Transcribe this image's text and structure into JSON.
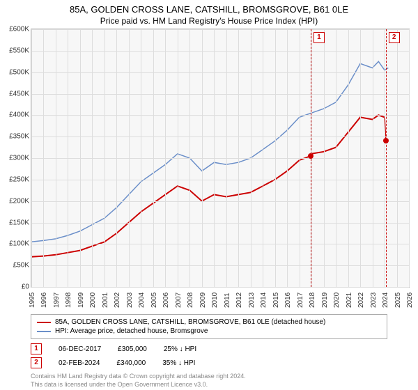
{
  "title": "85A, GOLDEN CROSS LANE, CATSHILL, BROMSGROVE, B61 0LE",
  "subtitle": "Price paid vs. HM Land Registry's House Price Index (HPI)",
  "chart": {
    "type": "line",
    "background_color": "#f7f7f7",
    "grid_color": "#dddddd",
    "border_color": "#bbbbbb",
    "y": {
      "min": 0,
      "max": 600000,
      "step": 50000,
      "labels": [
        "£0",
        "£50K",
        "£100K",
        "£150K",
        "£200K",
        "£250K",
        "£300K",
        "£350K",
        "£400K",
        "£450K",
        "£500K",
        "£550K",
        "£600K"
      ]
    },
    "x": {
      "min": 1995,
      "max": 2026,
      "step": 1,
      "labels": [
        "1995",
        "1996",
        "1997",
        "1998",
        "1999",
        "2000",
        "2001",
        "2002",
        "2003",
        "2004",
        "2005",
        "2006",
        "2007",
        "2008",
        "2009",
        "2010",
        "2011",
        "2012",
        "2013",
        "2014",
        "2015",
        "2016",
        "2017",
        "2018",
        "2019",
        "2020",
        "2021",
        "2022",
        "2023",
        "2024",
        "2025",
        "2026"
      ]
    },
    "series": [
      {
        "name": "property",
        "color": "#cc0000",
        "width": 2,
        "label": "85A, GOLDEN CROSS LANE, CATSHILL, BROMSGROVE, B61 0LE (detached house)",
        "points": [
          [
            1995,
            70000
          ],
          [
            1996,
            72000
          ],
          [
            1997,
            75000
          ],
          [
            1998,
            80000
          ],
          [
            1999,
            85000
          ],
          [
            2000,
            95000
          ],
          [
            2001,
            105000
          ],
          [
            2002,
            125000
          ],
          [
            2003,
            150000
          ],
          [
            2004,
            175000
          ],
          [
            2005,
            195000
          ],
          [
            2006,
            215000
          ],
          [
            2007,
            235000
          ],
          [
            2008,
            225000
          ],
          [
            2009,
            200000
          ],
          [
            2010,
            215000
          ],
          [
            2011,
            210000
          ],
          [
            2012,
            215000
          ],
          [
            2013,
            220000
          ],
          [
            2014,
            235000
          ],
          [
            2015,
            250000
          ],
          [
            2016,
            270000
          ],
          [
            2017,
            295000
          ],
          [
            2017.93,
            305000
          ],
          [
            2018,
            310000
          ],
          [
            2019,
            315000
          ],
          [
            2020,
            325000
          ],
          [
            2021,
            360000
          ],
          [
            2022,
            395000
          ],
          [
            2023,
            390000
          ],
          [
            2023.5,
            400000
          ],
          [
            2024,
            395000
          ],
          [
            2024.09,
            340000
          ]
        ]
      },
      {
        "name": "hpi",
        "color": "#6b8fc9",
        "width": 1.5,
        "label": "HPI: Average price, detached house, Bromsgrove",
        "points": [
          [
            1995,
            105000
          ],
          [
            1996,
            108000
          ],
          [
            1997,
            112000
          ],
          [
            1998,
            120000
          ],
          [
            1999,
            130000
          ],
          [
            2000,
            145000
          ],
          [
            2001,
            160000
          ],
          [
            2002,
            185000
          ],
          [
            2003,
            215000
          ],
          [
            2004,
            245000
          ],
          [
            2005,
            265000
          ],
          [
            2006,
            285000
          ],
          [
            2007,
            310000
          ],
          [
            2008,
            300000
          ],
          [
            2009,
            270000
          ],
          [
            2010,
            290000
          ],
          [
            2011,
            285000
          ],
          [
            2012,
            290000
          ],
          [
            2013,
            300000
          ],
          [
            2014,
            320000
          ],
          [
            2015,
            340000
          ],
          [
            2016,
            365000
          ],
          [
            2017,
            395000
          ],
          [
            2018,
            405000
          ],
          [
            2019,
            415000
          ],
          [
            2020,
            430000
          ],
          [
            2021,
            470000
          ],
          [
            2022,
            520000
          ],
          [
            2023,
            510000
          ],
          [
            2023.5,
            525000
          ],
          [
            2024,
            505000
          ],
          [
            2024.3,
            510000
          ]
        ]
      }
    ],
    "markers": [
      {
        "n": "1",
        "year": 2017.93,
        "value": 305000
      },
      {
        "n": "2",
        "year": 2024.09,
        "value": 340000
      }
    ]
  },
  "sales": [
    {
      "n": "1",
      "date": "06-DEC-2017",
      "price": "£305,000",
      "delta": "25% ↓ HPI"
    },
    {
      "n": "2",
      "date": "02-FEB-2024",
      "price": "£340,000",
      "delta": "35% ↓ HPI"
    }
  ],
  "footnote1": "Contains HM Land Registry data © Crown copyright and database right 2024.",
  "footnote2": "This data is licensed under the Open Government Licence v3.0."
}
